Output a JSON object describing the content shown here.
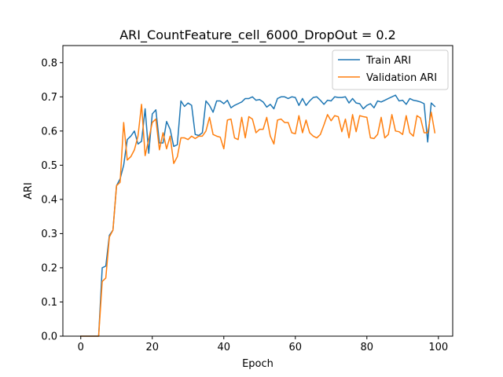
{
  "chart_data": {
    "type": "line",
    "title": "ARI_CountFeature_cell_6000_DropOut = 0.2",
    "xlabel": "Epoch",
    "ylabel": "ARI",
    "xlim": [
      -5,
      104
    ],
    "ylim": [
      0.0,
      0.85
    ],
    "xticks": [
      0,
      20,
      40,
      60,
      80,
      100
    ],
    "yticks": [
      0.0,
      0.1,
      0.2,
      0.3,
      0.4,
      0.5,
      0.6,
      0.7,
      0.8
    ],
    "legend_position": "upper-right",
    "series": [
      {
        "name": "Train ARI",
        "color": "#1f77b4",
        "values": [
          0,
          0,
          0,
          0,
          0,
          0,
          0.2,
          0.205,
          0.295,
          0.31,
          0.44,
          0.46,
          0.5,
          0.575,
          0.585,
          0.6,
          0.562,
          0.57,
          0.665,
          0.535,
          0.65,
          0.662,
          0.565,
          0.565,
          0.628,
          0.605,
          0.555,
          0.56,
          0.688,
          0.672,
          0.682,
          0.675,
          0.59,
          0.587,
          0.595,
          0.688,
          0.675,
          0.655,
          0.688,
          0.688,
          0.68,
          0.69,
          0.668,
          0.675,
          0.68,
          0.685,
          0.695,
          0.695,
          0.7,
          0.69,
          0.692,
          0.685,
          0.67,
          0.678,
          0.665,
          0.695,
          0.7,
          0.7,
          0.695,
          0.7,
          0.698,
          0.675,
          0.695,
          0.675,
          0.688,
          0.698,
          0.7,
          0.69,
          0.678,
          0.69,
          0.688,
          0.7,
          0.698,
          0.698,
          0.7,
          0.682,
          0.695,
          0.682,
          0.68,
          0.665,
          0.675,
          0.68,
          0.668,
          0.688,
          0.685,
          0.69,
          0.695,
          0.7,
          0.705,
          0.688,
          0.69,
          0.678,
          0.695,
          0.69,
          0.688,
          0.685,
          0.68,
          0.568,
          0.682,
          0.672
        ]
      },
      {
        "name": "Validation ARI",
        "color": "#ff7f0e",
        "values": [
          0,
          0,
          0,
          0,
          0,
          0,
          0.16,
          0.17,
          0.29,
          0.31,
          0.44,
          0.45,
          0.625,
          0.515,
          0.525,
          0.545,
          0.585,
          0.678,
          0.528,
          0.575,
          0.625,
          0.635,
          0.545,
          0.595,
          0.548,
          0.585,
          0.505,
          0.525,
          0.58,
          0.58,
          0.575,
          0.585,
          0.578,
          0.585,
          0.585,
          0.6,
          0.64,
          0.59,
          0.585,
          0.582,
          0.548,
          0.632,
          0.635,
          0.58,
          0.575,
          0.64,
          0.58,
          0.642,
          0.635,
          0.595,
          0.605,
          0.605,
          0.64,
          0.585,
          0.562,
          0.632,
          0.635,
          0.625,
          0.625,
          0.595,
          0.592,
          0.645,
          0.595,
          0.632,
          0.595,
          0.585,
          0.58,
          0.59,
          0.618,
          0.648,
          0.63,
          0.645,
          0.642,
          0.598,
          0.635,
          0.58,
          0.648,
          0.598,
          0.645,
          0.642,
          0.64,
          0.58,
          0.578,
          0.59,
          0.64,
          0.58,
          0.59,
          0.648,
          0.6,
          0.598,
          0.59,
          0.645,
          0.595,
          0.585,
          0.645,
          0.638,
          0.595,
          0.595,
          0.655,
          0.595
        ]
      }
    ]
  }
}
